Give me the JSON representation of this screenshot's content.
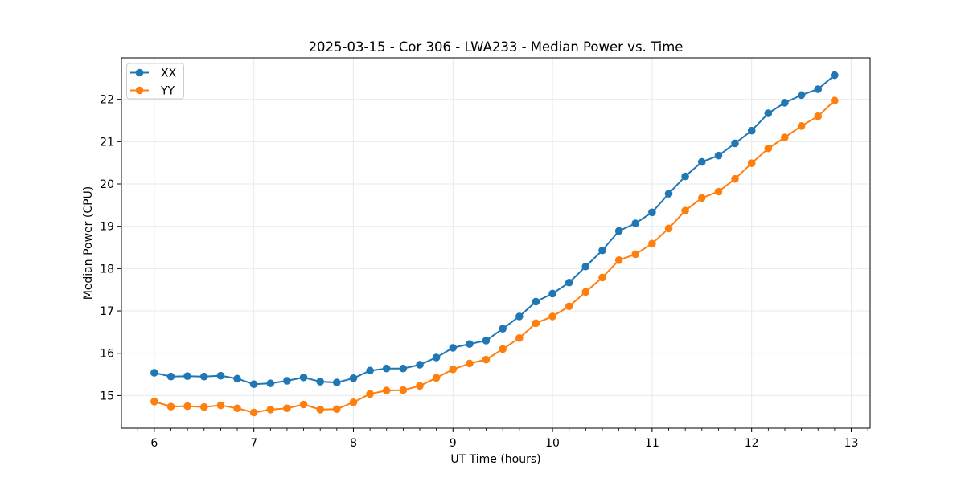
{
  "chart_data": {
    "type": "line",
    "title": "2025-03-15 - Cor 306 - LWA233 - Median Power vs. Time",
    "xlabel": "UT Time (hours)",
    "ylabel": "Median Power (CPU)",
    "xlim": [
      5.67,
      13.19
    ],
    "ylim": [
      14.23,
      22.98
    ],
    "x_major_ticks": [
      6,
      7,
      8,
      9,
      10,
      11,
      12,
      13
    ],
    "y_major_ticks": [
      15,
      16,
      17,
      18,
      19,
      20,
      21,
      22
    ],
    "x_minor_step": 0.16667,
    "grid": true,
    "legend_position": "upper-left",
    "background": "#ffffff",
    "grid_color": "#e9e9e9",
    "spine_color": "#000000",
    "legend_edge_color": "#cccccc",
    "x": [
      6.0,
      6.167,
      6.333,
      6.5,
      6.667,
      6.833,
      7.0,
      7.167,
      7.333,
      7.5,
      7.667,
      7.833,
      8.0,
      8.167,
      8.333,
      8.5,
      8.667,
      8.833,
      9.0,
      9.167,
      9.333,
      9.5,
      9.667,
      9.833,
      10.0,
      10.167,
      10.333,
      10.5,
      10.667,
      10.833,
      11.0,
      11.167,
      11.333,
      11.5,
      11.667,
      11.833,
      12.0,
      12.167,
      12.333,
      12.5,
      12.667,
      12.833
    ],
    "series": [
      {
        "name": "XX",
        "color": "#1f77b4",
        "values": [
          15.54,
          15.45,
          15.46,
          15.45,
          15.47,
          15.4,
          15.27,
          15.29,
          15.35,
          15.43,
          15.33,
          15.31,
          15.41,
          15.59,
          15.64,
          15.64,
          15.73,
          15.9,
          16.13,
          16.22,
          16.3,
          16.58,
          16.87,
          17.22,
          17.41,
          17.67,
          18.05,
          18.43,
          18.89,
          19.07,
          19.33,
          19.77,
          20.18,
          20.52,
          20.67,
          20.96,
          21.26,
          21.67,
          21.92,
          22.1,
          22.24,
          22.57
        ]
      },
      {
        "name": "YY",
        "color": "#ff7f0e",
        "values": [
          14.86,
          14.74,
          14.75,
          14.73,
          14.77,
          14.7,
          14.6,
          14.67,
          14.7,
          14.79,
          14.67,
          14.68,
          14.84,
          15.04,
          15.12,
          15.13,
          15.23,
          15.42,
          15.62,
          15.76,
          15.85,
          16.1,
          16.36,
          16.71,
          16.87,
          17.11,
          17.45,
          17.79,
          18.2,
          18.34,
          18.59,
          18.95,
          19.37,
          19.67,
          19.82,
          20.12,
          20.49,
          20.84,
          21.1,
          21.37,
          21.6,
          21.97
        ]
      }
    ]
  }
}
